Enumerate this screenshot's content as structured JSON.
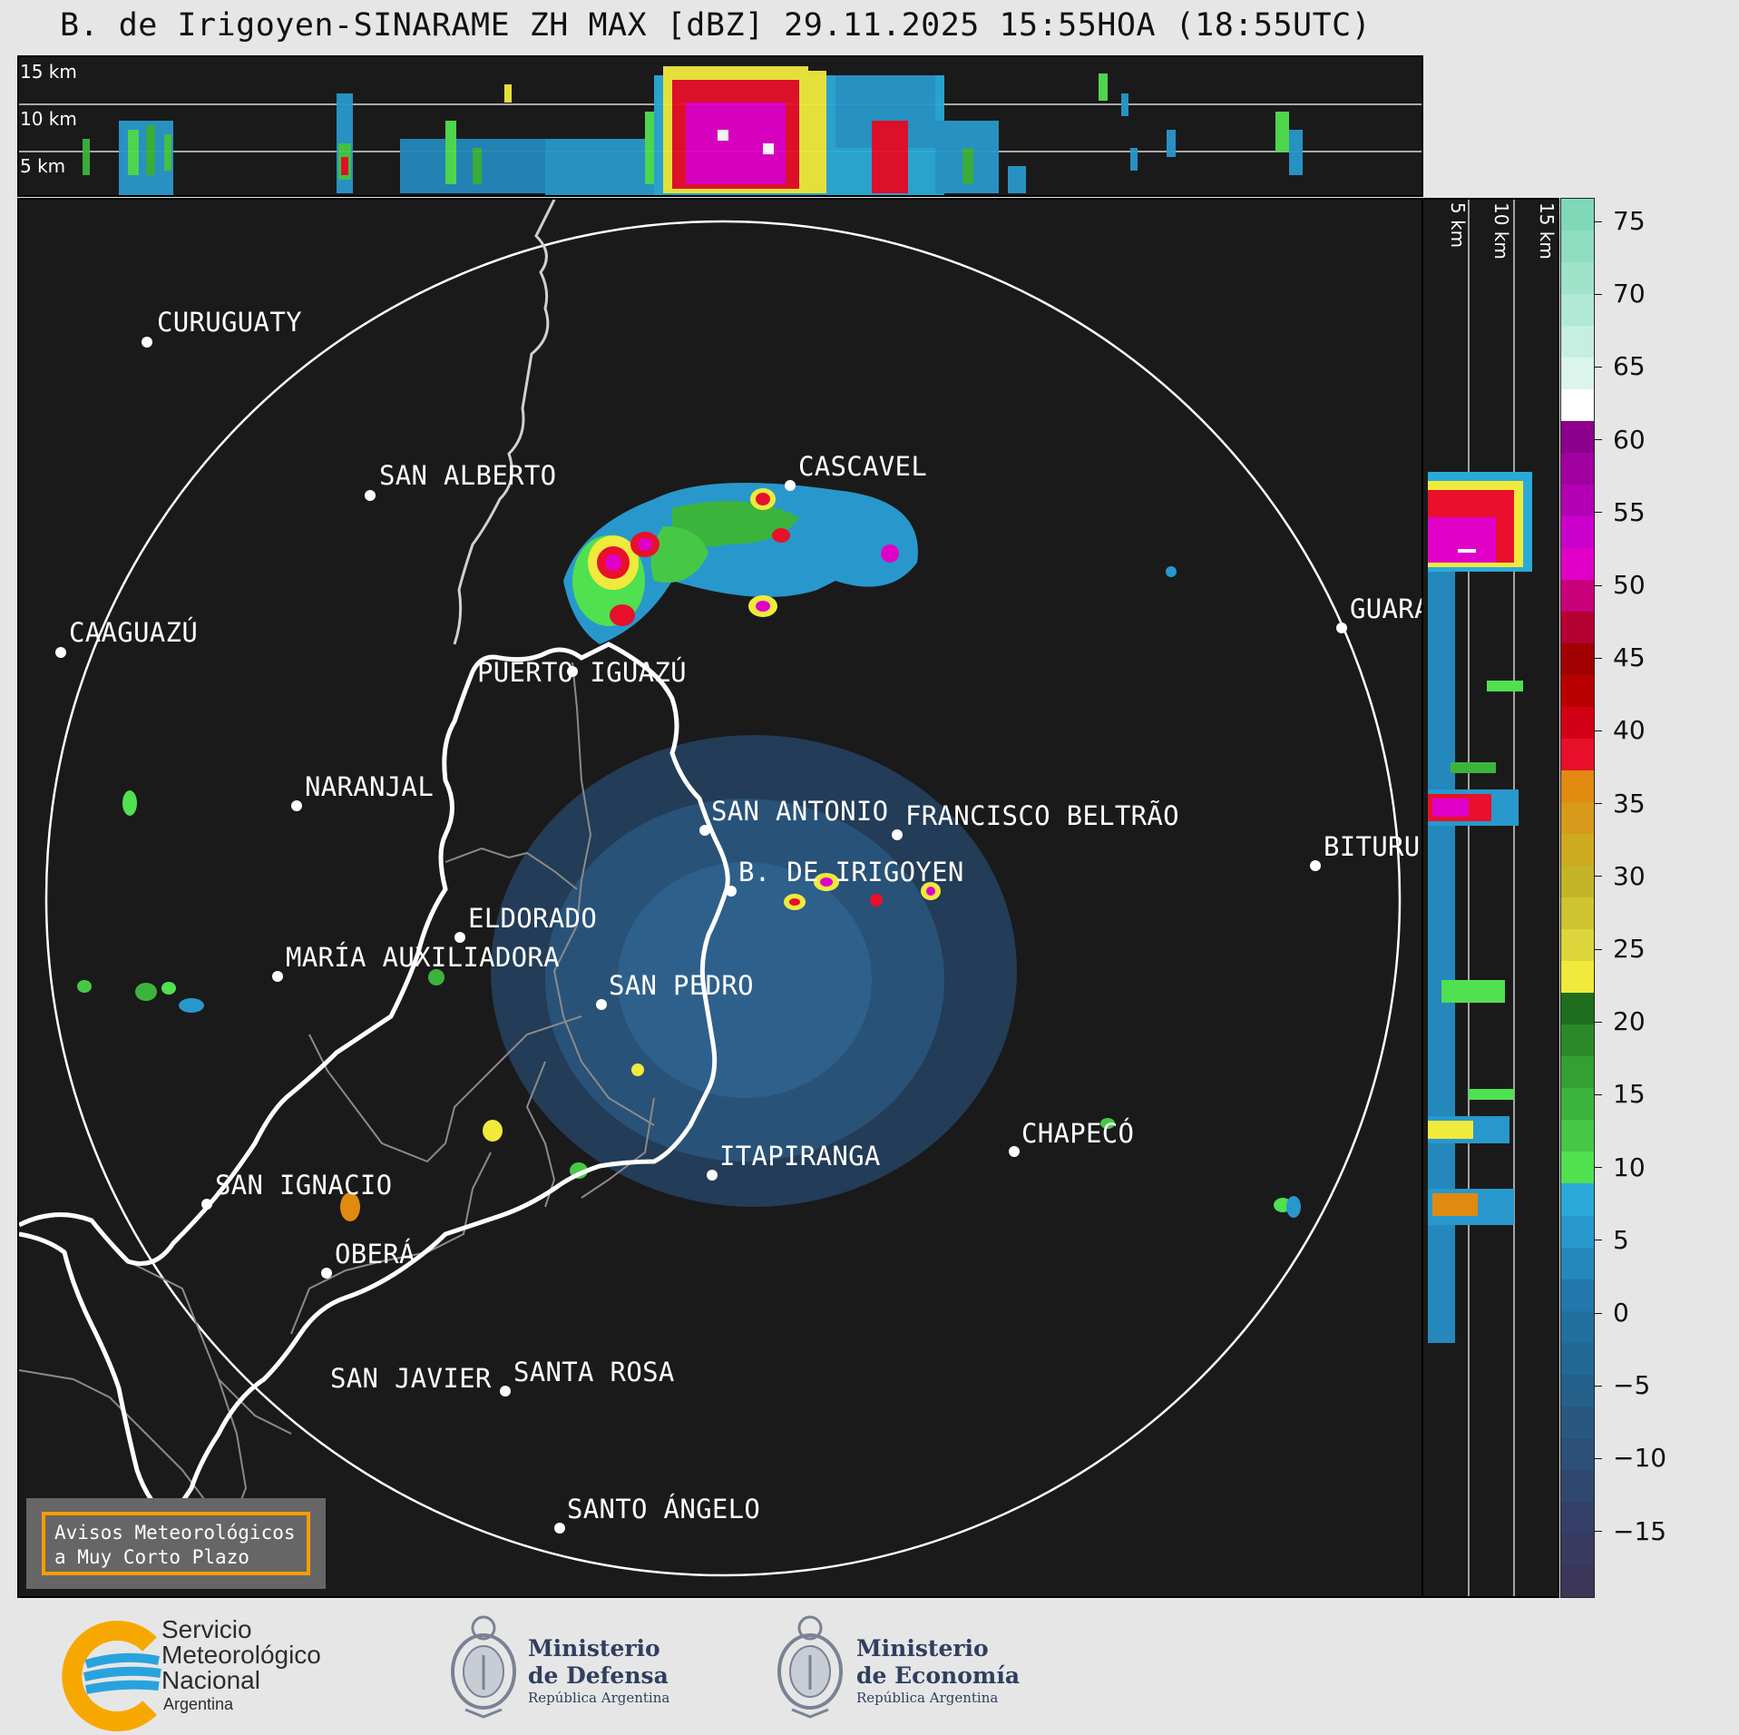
{
  "title": "B. de Irigoyen-SINARAME ZH MAX [dBZ] 29.11.2025 15:55HOA (18:55UTC)",
  "top_panel": {
    "km_labels": [
      "15 km",
      "10 km",
      "5 km"
    ]
  },
  "side_panel": {
    "km_labels": [
      "5 km",
      "10 km",
      "15 km"
    ]
  },
  "cities": [
    {
      "name": "CURUGUATY"
    },
    {
      "name": "SAN ALBERTO"
    },
    {
      "name": "CASCAVEL"
    },
    {
      "name": "CAAGUAZÚ"
    },
    {
      "name": "GUARA"
    },
    {
      "name": "PUERTO IGUAZÚ"
    },
    {
      "name": "NARANJAL"
    },
    {
      "name": "SAN ANTONIO"
    },
    {
      "name": "FRANCISCO BELTRÃO"
    },
    {
      "name": "BITURU"
    },
    {
      "name": "B. DE IRIGOYEN"
    },
    {
      "name": "ELDORADO"
    },
    {
      "name": "MARÍA AUXILIADORA"
    },
    {
      "name": "SAN PEDRO"
    },
    {
      "name": "CHAPECÓ"
    },
    {
      "name": "ITAPIRANGA"
    },
    {
      "name": "SAN IGNACIO"
    },
    {
      "name": "OBERÁ"
    },
    {
      "name": "SAN JAVIER"
    },
    {
      "name": "SANTA ROSA"
    },
    {
      "name": "SANTO ÁNGELO"
    }
  ],
  "colorbar": {
    "unit": "dBZ",
    "ticks": [
      "75",
      "70",
      "65",
      "60",
      "55",
      "50",
      "45",
      "40",
      "35",
      "30",
      "25",
      "20",
      "15",
      "10",
      "5",
      "0",
      "−5",
      "−10",
      "−15"
    ],
    "colors": [
      "#7fd9b9",
      "#8fdec2",
      "#a0e3cb",
      "#b2e9d6",
      "#c6efe1",
      "#dcf5ec",
      "#ffffff",
      "#8c008c",
      "#a000a0",
      "#b400b4",
      "#cc00cc",
      "#e000c8",
      "#c8007a",
      "#b40032",
      "#a00000",
      "#b80000",
      "#d20014",
      "#e8102a",
      "#e08a10",
      "#d89a1a",
      "#ceaa20",
      "#c4b428",
      "#cec432",
      "#dcd63c",
      "#f0ea3c",
      "#1e6e1e",
      "#2a8a2a",
      "#34a034",
      "#3cb43c",
      "#46c846",
      "#50e050",
      "#2aaad8",
      "#2898cc",
      "#2488bc",
      "#2278ac",
      "#20709e",
      "#226894",
      "#24608a",
      "#285880",
      "#2c5078",
      "#304870",
      "#344068",
      "#383a60",
      "#3c3658"
    ]
  },
  "notice": {
    "line1": "Avisos Meteorológicos",
    "line2": "a Muy Corto Plazo"
  },
  "logos": {
    "smn": {
      "line1": "Servicio",
      "line2": "Meteorológico",
      "line3": "Nacional",
      "line4": "Argentina"
    },
    "defensa": {
      "line1": "Ministerio",
      "line2": "de Defensa",
      "line3": "República Argentina"
    },
    "economia": {
      "line1": "Ministerio",
      "line2": "de Economía",
      "line3": "República Argentina"
    }
  }
}
